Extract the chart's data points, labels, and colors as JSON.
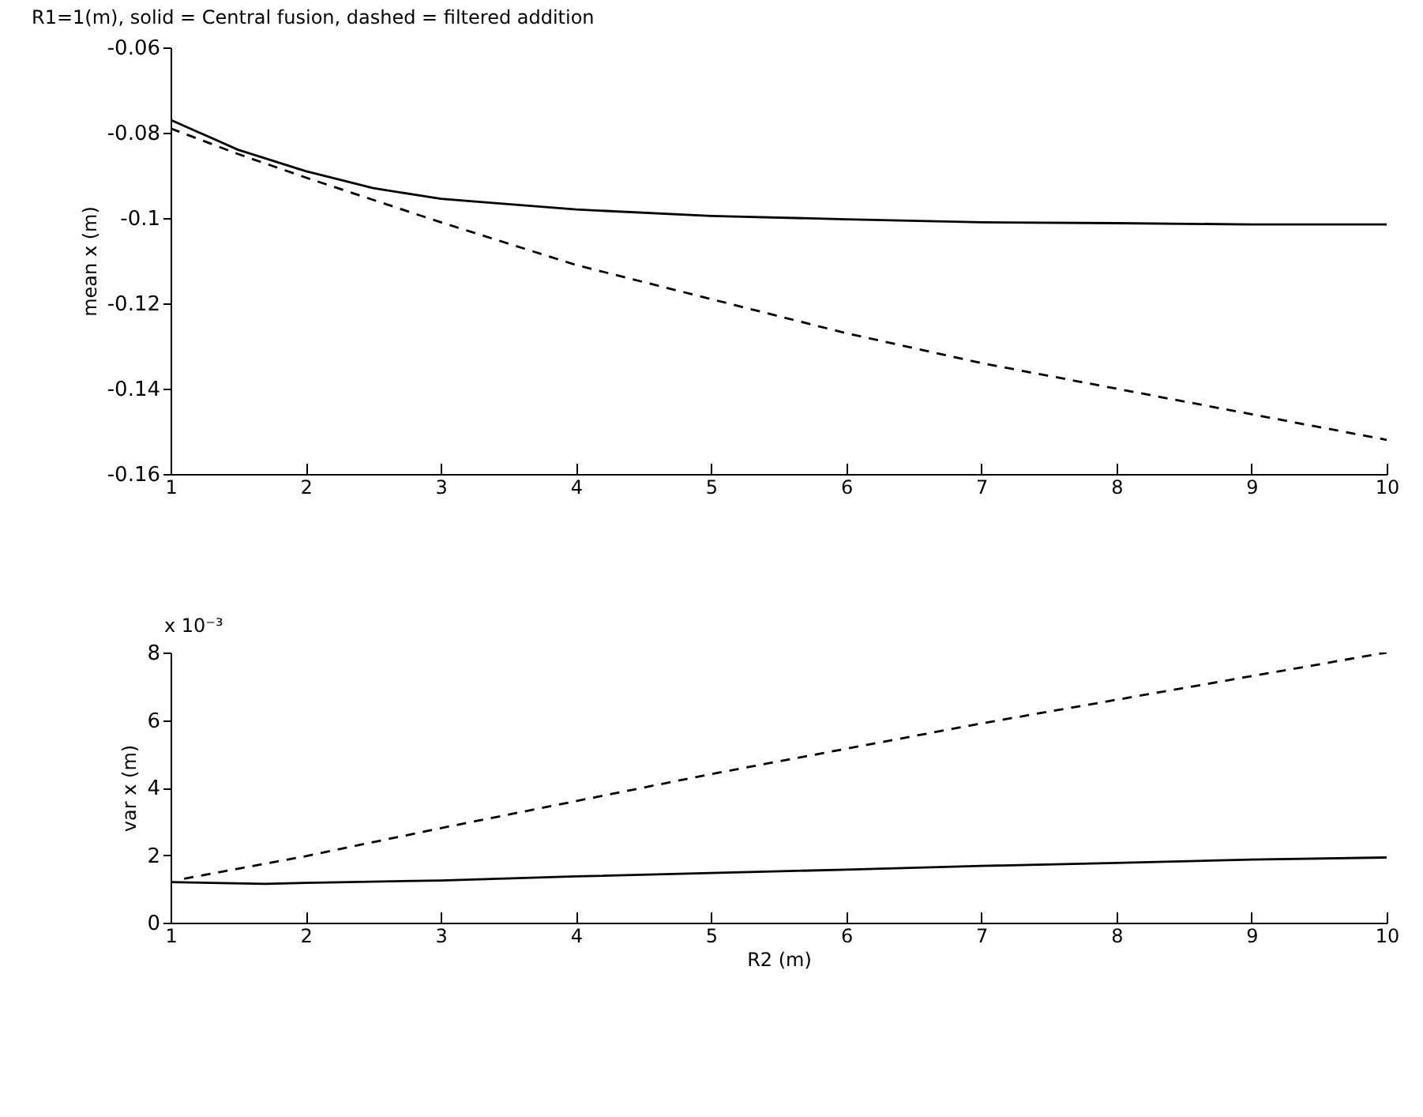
{
  "chart_data": [
    {
      "type": "line",
      "title": "R1=1(m),    solid = Central fusion, dashed = filtered addition",
      "ylabel": "mean x (m)",
      "xlim": [
        1,
        10
      ],
      "xticks": [
        1,
        2,
        3,
        4,
        5,
        6,
        7,
        8,
        9,
        10
      ],
      "ylim": [
        -0.16,
        -0.06
      ],
      "yticks": [
        -0.16,
        -0.14,
        -0.12,
        -0.1,
        -0.08,
        -0.06
      ],
      "series": [
        {
          "color": "#000000",
          "line_style": "solid",
          "x": [
            1,
            1.5,
            2,
            2.5,
            3,
            4,
            5,
            6,
            7,
            8,
            9,
            10
          ],
          "values": [
            -0.077,
            -0.084,
            -0.089,
            -0.093,
            -0.0955,
            -0.098,
            -0.0995,
            -0.1003,
            -0.101,
            -0.1012,
            -0.1015,
            -0.1015
          ]
        },
        {
          "color": "#000000",
          "line_style": "dashed",
          "x": [
            1,
            1.5,
            2,
            3,
            4,
            5,
            6,
            7,
            8,
            9,
            10
          ],
          "values": [
            -0.079,
            -0.085,
            -0.0905,
            -0.101,
            -0.111,
            -0.119,
            -0.127,
            -0.134,
            -0.14,
            -0.146,
            -0.152
          ]
        }
      ]
    },
    {
      "type": "line",
      "annotations": [
        "x 10⁻³"
      ],
      "xlabel": "R2  (m)",
      "ylabel": "var x (m)",
      "xlim": [
        1,
        10
      ],
      "xticks": [
        1,
        2,
        3,
        4,
        5,
        6,
        7,
        8,
        9,
        10
      ],
      "ylim": [
        0,
        8
      ],
      "yticks": [
        0,
        2,
        4,
        6,
        8
      ],
      "series": [
        {
          "color": "#000000",
          "line_style": "solid",
          "x": [
            1,
            1.7,
            2,
            3,
            4,
            5,
            6,
            7,
            8,
            9,
            10
          ],
          "values": [
            1.2,
            1.15,
            1.18,
            1.25,
            1.37,
            1.47,
            1.57,
            1.68,
            1.77,
            1.87,
            1.93
          ]
        },
        {
          "color": "#000000",
          "line_style": "dashed",
          "x": [
            1.1,
            2,
            3,
            4,
            5,
            6,
            7,
            8,
            9,
            10
          ],
          "values": [
            1.3,
            1.97,
            2.8,
            3.6,
            4.4,
            5.15,
            5.9,
            6.6,
            7.3,
            8.0
          ]
        }
      ]
    }
  ]
}
